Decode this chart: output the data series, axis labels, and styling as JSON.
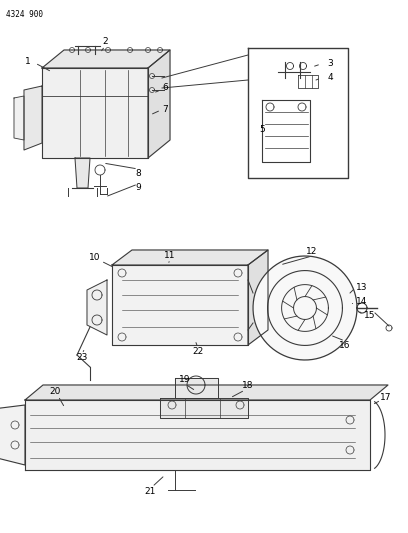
{
  "page_code": "4324 900",
  "bg_color": "#ffffff",
  "line_color": "#3a3a3a",
  "label_color": "#000000",
  "label_fontsize": 6.5,
  "code_fontsize": 5.5,
  "figure_width": 4.08,
  "figure_height": 5.33,
  "dpi": 100
}
